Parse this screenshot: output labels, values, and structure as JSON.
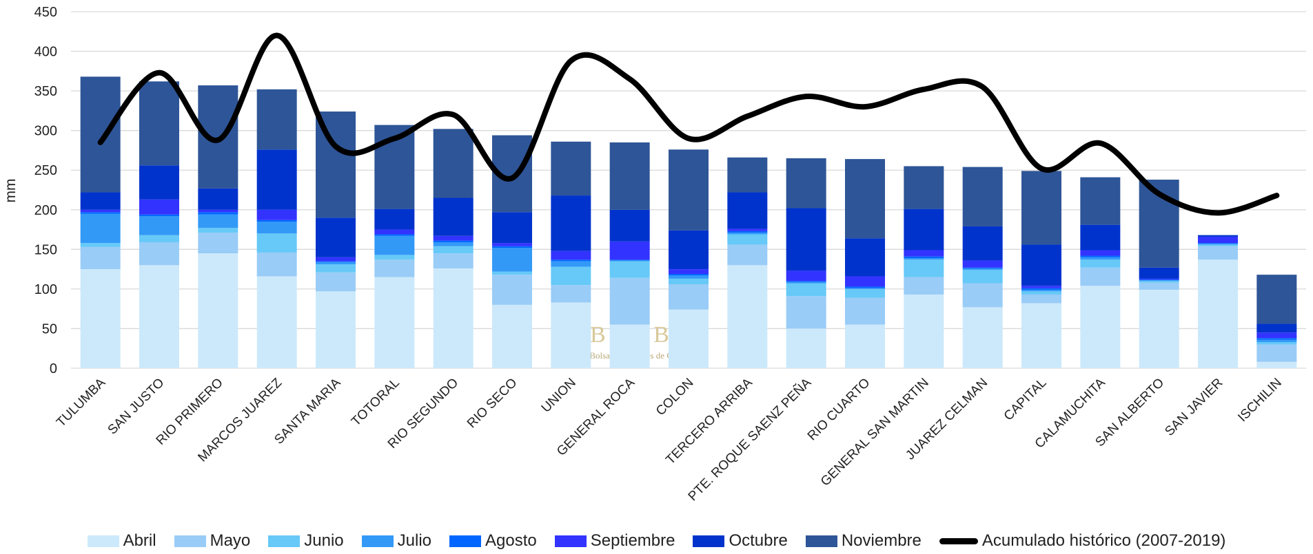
{
  "chart_data": {
    "type": "bar",
    "stacked": true,
    "y_label": "mm",
    "watermark": {
      "title": "BCCBA",
      "subtitle": "Bolsa de Cereales de Córdoba"
    },
    "categories": [
      "TULUMBA",
      "SAN JUSTO",
      "RIO PRIMERO",
      "MARCOS JUAREZ",
      "SANTA MARIA",
      "TOTORAL",
      "RIO SEGUNDO",
      "RIO SECO",
      "UNION",
      "GENERAL ROCA",
      "COLON",
      "TERCERO ARRIBA",
      "PTE. ROQUE SAENZ PEÑA",
      "RIO CUARTO",
      "GENERAL SAN MARTIN",
      "JUAREZ CELMAN",
      "CAPITAL",
      "CALAMUCHITA",
      "SAN ALBERTO",
      "SAN JAVIER",
      "ISCHILIN"
    ],
    "series": [
      {
        "name": "Abril",
        "color": "#cce9fb",
        "values": [
          125,
          130,
          145,
          116,
          97,
          115,
          126,
          80,
          83,
          55,
          74,
          130,
          50,
          55,
          93,
          77,
          82,
          104,
          99,
          137,
          8
        ]
      },
      {
        "name": "Mayo",
        "color": "#99ccf7",
        "values": [
          28,
          29,
          26,
          30,
          24,
          22,
          19,
          38,
          22,
          59,
          32,
          26,
          41,
          34,
          22,
          30,
          11,
          23,
          9,
          17,
          22
        ]
      },
      {
        "name": "Junio",
        "color": "#66c9f7",
        "values": [
          5,
          9,
          6,
          24,
          10,
          6,
          9,
          4,
          23,
          21,
          7,
          13,
          16,
          11,
          22,
          17,
          4,
          10,
          2,
          2,
          3
        ]
      },
      {
        "name": "Julio",
        "color": "#3399f7",
        "values": [
          37,
          24,
          17,
          15,
          3,
          24,
          5,
          30,
          7,
          1,
          4,
          2,
          2,
          1,
          2,
          2,
          2,
          3,
          1,
          1,
          3
        ]
      },
      {
        "name": "Agosto",
        "color": "#0066ff",
        "values": [
          2,
          2,
          3,
          2,
          1,
          2,
          2,
          2,
          2,
          1,
          2,
          2,
          1,
          2,
          2,
          1,
          2,
          2,
          1,
          1,
          2
        ]
      },
      {
        "name": "Septiembre",
        "color": "#3333ff",
        "values": [
          3,
          19,
          3,
          13,
          5,
          6,
          6,
          4,
          11,
          23,
          6,
          3,
          13,
          13,
          8,
          9,
          3,
          7,
          1,
          8,
          7
        ]
      },
      {
        "name": "Octubre",
        "color": "#0033cc",
        "values": [
          22,
          43,
          27,
          76,
          50,
          26,
          48,
          39,
          70,
          40,
          49,
          46,
          79,
          48,
          52,
          43,
          52,
          32,
          14,
          2,
          11
        ]
      },
      {
        "name": "Noviembre",
        "color": "#2e5597",
        "values": [
          146,
          106,
          130,
          76,
          134,
          106,
          87,
          97,
          68,
          85,
          102,
          44,
          63,
          100,
          54,
          75,
          93,
          60,
          111,
          0,
          62
        ]
      }
    ],
    "line": {
      "name": "Acumulado histórico (2007-2019)",
      "color": "#000000",
      "values": [
        285,
        373,
        288,
        420,
        280,
        290,
        320,
        240,
        388,
        365,
        290,
        318,
        343,
        330,
        352,
        355,
        252,
        284,
        220,
        196,
        218
      ]
    },
    "ylim": [
      0,
      450
    ],
    "yticks": [
      0,
      50,
      100,
      150,
      200,
      250,
      300,
      350,
      400,
      450
    ],
    "grid": true,
    "legend": "bottom"
  }
}
